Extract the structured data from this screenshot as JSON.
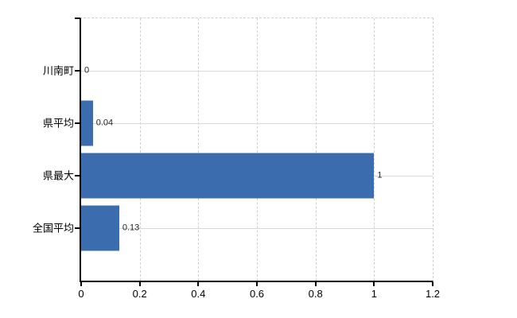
{
  "chart_data": {
    "type": "bar",
    "orientation": "horizontal",
    "title": "",
    "categories": [
      "川南町",
      "県平均",
      "県最大",
      "全国平均"
    ],
    "values": [
      0,
      0.04,
      1,
      0.13
    ],
    "value_labels": [
      "0",
      "0.04",
      "1",
      "0.13"
    ],
    "x_tick_values": [
      0,
      0.2,
      0.4,
      0.6,
      0.8,
      1,
      1.2
    ],
    "x_ticks": [
      "0",
      "0.2",
      "0.4",
      "0.6",
      "0.8",
      "1",
      "1.2"
    ],
    "xlim": [
      0,
      1.2
    ],
    "xlabel": "",
    "ylabel": "",
    "legend": "none",
    "grid": {
      "horizontal_style": "solid",
      "vertical_style": "dashed",
      "color": "#d9d9d9"
    },
    "colors": {
      "bar": "#3b6cae",
      "axis": "#000000",
      "background": "#ffffff",
      "grid_dashed": "#cfcfcf",
      "text": "#000000",
      "value_text": "#222222"
    }
  }
}
